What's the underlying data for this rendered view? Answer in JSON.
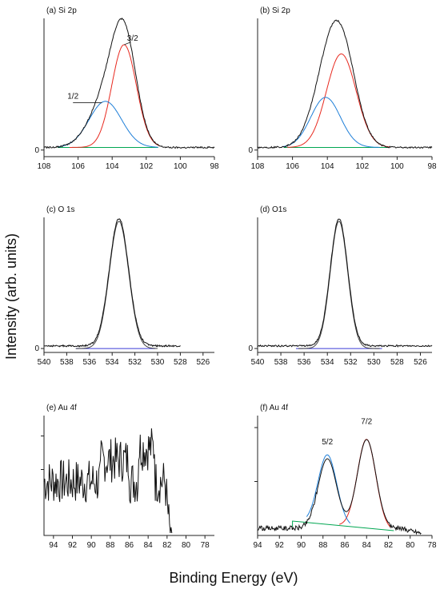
{
  "figure": {
    "ylabel": "Intensity (arb. units)",
    "xlabel": "Binding Energy (eV)"
  },
  "chart_data": [
    {
      "id": "a",
      "type": "line",
      "title": "(a) Si 2p",
      "xlim": [
        108,
        98
      ],
      "ylim": [
        -0.05,
        1.0
      ],
      "xticks": [
        108,
        106,
        104,
        102,
        100,
        98
      ],
      "yticks": [
        0
      ],
      "ytick_labels": [
        "0"
      ],
      "baseline": {
        "color": "#00a651",
        "from": 107.2,
        "to": 101.3,
        "value": 0.02
      },
      "components": [
        {
          "color": "#e8281e",
          "kind": "gauss",
          "center": 103.3,
          "height": 0.78,
          "width": 0.72,
          "from": 106.5,
          "to": 101.2
        },
        {
          "color": "#1f7fd8",
          "kind": "gauss",
          "center": 104.4,
          "height": 0.35,
          "width": 0.95,
          "from": 107.2,
          "to": 101.3
        }
      ],
      "envelope": {
        "color": "#111111",
        "kind": "sum",
        "from": 108,
        "to": 98,
        "offset": 0.02
      },
      "annotations": [
        {
          "text": "3/2",
          "x": 102.8,
          "y": 0.83,
          "lx1": 103.3,
          "ly1": 0.8,
          "lx2": 102.9,
          "ly2": 0.82
        },
        {
          "text": "1/2",
          "x": 106.3,
          "y": 0.39,
          "lx1": 106.3,
          "ly1": 0.36,
          "lx2": 104.6,
          "ly2": 0.36
        }
      ]
    },
    {
      "id": "b",
      "type": "line",
      "title": "(b) Si 2p",
      "xlim": [
        108,
        98
      ],
      "ylim": [
        -0.05,
        1.0
      ],
      "xticks": [
        108,
        106,
        104,
        102,
        100,
        98
      ],
      "yticks": [
        0
      ],
      "ytick_labels": [
        "0"
      ],
      "baseline": {
        "color": "#00a651",
        "from": 106.5,
        "to": 100.5,
        "value": 0.02
      },
      "components": [
        {
          "color": "#e8281e",
          "kind": "gauss",
          "center": 103.2,
          "height": 0.71,
          "width": 0.85,
          "from": 106.3,
          "to": 100.4
        },
        {
          "color": "#1f7fd8",
          "kind": "gauss",
          "center": 104.1,
          "height": 0.38,
          "width": 0.85,
          "from": 106.6,
          "to": 101.0
        }
      ],
      "envelope": {
        "color": "#111111",
        "kind": "sum",
        "from": 108,
        "to": 98,
        "offset": 0.02
      },
      "annotations": []
    },
    {
      "id": "c",
      "type": "line",
      "title": "(c) O 1s",
      "xlim": [
        540,
        525
      ],
      "ylim": [
        -0.03,
        1.0
      ],
      "xticks": [
        540,
        538,
        536,
        534,
        532,
        530,
        528,
        526
      ],
      "yticks": [
        0
      ],
      "ytick_labels": [
        "0"
      ],
      "baseline": {
        "color": "#3b3bd6",
        "from": 537.2,
        "to": 530.2,
        "value": 0.0
      },
      "components": [
        {
          "color": "#444444",
          "kind": "gauss",
          "center": 533.4,
          "height": 0.97,
          "width": 0.85,
          "from": 537.2,
          "to": 530.0
        }
      ],
      "envelope": {
        "color": "#111111",
        "kind": "sum",
        "from": 540,
        "to": 528,
        "offset": 0.02
      },
      "annotations": []
    },
    {
      "id": "d",
      "type": "line",
      "title": "(d) O1s",
      "xlim": [
        540,
        525
      ],
      "ylim": [
        -0.03,
        1.0
      ],
      "xticks": [
        540,
        538,
        536,
        534,
        532,
        530,
        528,
        526
      ],
      "yticks": [
        0
      ],
      "ytick_labels": [
        "0"
      ],
      "baseline": {
        "color": "#3b3bd6",
        "from": 536.7,
        "to": 529.3,
        "value": 0.0
      },
      "components": [
        {
          "color": "#444444",
          "kind": "gauss",
          "center": 533.0,
          "height": 0.97,
          "width": 0.75,
          "from": 536.5,
          "to": 529.5
        }
      ],
      "envelope": {
        "color": "#111111",
        "kind": "sum",
        "from": 540,
        "to": 525,
        "offset": 0.02
      },
      "annotations": []
    },
    {
      "id": "e",
      "type": "line",
      "title": "(e) Au 4f",
      "xlim": [
        95,
        77
      ],
      "ylim": [
        0,
        1.0
      ],
      "xticks": [
        94,
        92,
        90,
        88,
        86,
        84,
        82,
        80,
        78
      ],
      "yticks": [
        0.55,
        0.83
      ],
      "ytick_labels": [
        "",
        ""
      ],
      "baseline": null,
      "components": [],
      "envelope": {
        "color": "#111111",
        "kind": "noise",
        "from": 95,
        "to": 81.5,
        "seed": 7
      },
      "annotations": []
    },
    {
      "id": "f",
      "type": "line",
      "title": "(f) Au 4f",
      "xlim": [
        94,
        78
      ],
      "ylim": [
        0,
        1.0
      ],
      "xticks": [
        94,
        92,
        90,
        88,
        86,
        84,
        82,
        80,
        78
      ],
      "yticks": [
        0.45,
        0.9
      ],
      "ytick_labels": [
        "",
        ""
      ],
      "baseline": {
        "color": "#00a651",
        "kind": "ramp",
        "from": 90.8,
        "to": 81.5,
        "y1": 0.12,
        "y2": 0.04
      },
      "components": [
        {
          "color": "#e8281e",
          "kind": "gauss",
          "center": 84.0,
          "height": 0.74,
          "width": 0.85,
          "from": 86.5,
          "to": 81.8
        },
        {
          "color": "#1f7fd8",
          "kind": "gauss",
          "center": 87.6,
          "height": 0.58,
          "width": 0.85,
          "from": 89.5,
          "to": 85.5
        }
      ],
      "envelope": {
        "color": "#111111",
        "kind": "sum_noise",
        "from": 94,
        "to": 79,
        "offset": 0.06
      },
      "annotations": [
        {
          "text": "5/2",
          "x": 87.6,
          "y": 0.76
        },
        {
          "text": "7/2",
          "x": 84.0,
          "y": 0.93
        }
      ]
    }
  ]
}
